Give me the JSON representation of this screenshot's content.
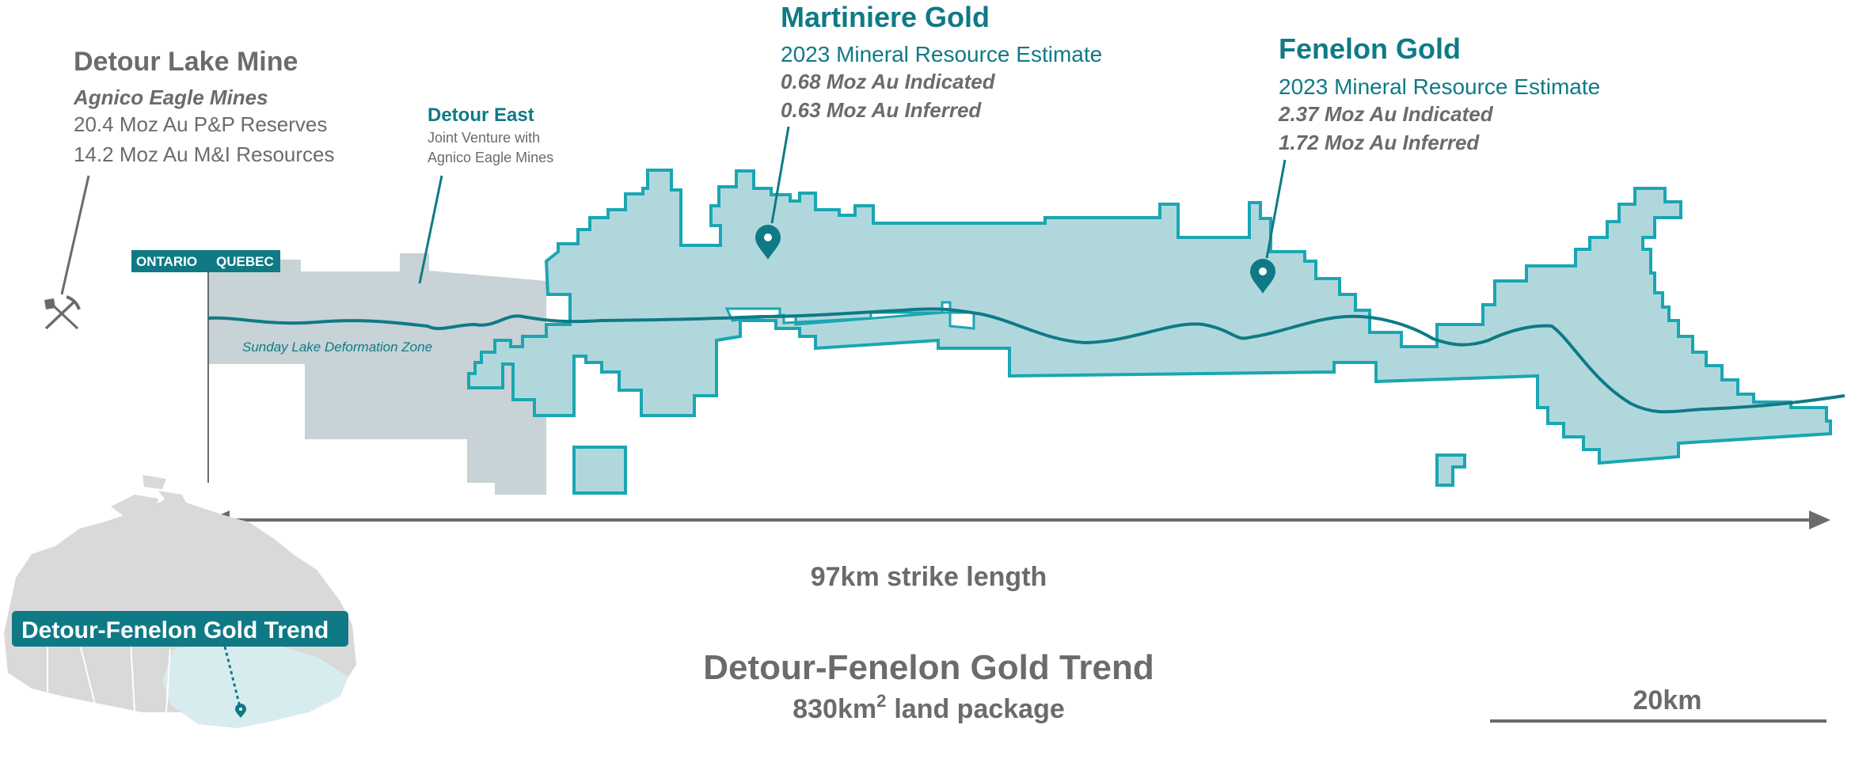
{
  "colors": {
    "teal_dark": "#0f7a86",
    "teal_fill": "#b0d8dc",
    "teal_stroke": "#1aa6b2",
    "grey_land": "#c7d3d6",
    "text_grey": "#6b6b6b",
    "canada_grey": "#d9d9d9",
    "quebec_fill": "#d7ecef"
  },
  "detour_lake": {
    "title": "Detour Lake Mine",
    "owner": "Agnico Eagle Mines",
    "line1": "20.4 Moz Au P&P Reserves",
    "line2": "14.2 Moz Au M&I Resources",
    "icon": "mine-pickaxe-shovel-icon"
  },
  "detour_east": {
    "title": "Detour East",
    "line1": "Joint Venture with",
    "line2": "Agnico Eagle Mines"
  },
  "martiniere": {
    "title": "Martiniere Gold",
    "subtitle": "2023 Mineral Resource Estimate",
    "indicated": "0.68 Moz Au Indicated",
    "inferred": "0.63 Moz Au Inferred",
    "icon": "map-pin-icon"
  },
  "fenelon": {
    "title": "Fenelon Gold",
    "subtitle": "2023 Mineral Resource Estimate",
    "indicated": "2.37 Moz Au Indicated",
    "inferred": "1.72 Moz Au Inferred",
    "icon": "map-pin-icon"
  },
  "border": {
    "ontario": "ONTARIO",
    "quebec": "QUEBEC"
  },
  "deformation_zone": "Sunday Lake Deformation Zone",
  "strike": {
    "label": "97km strike length",
    "length_km": 97
  },
  "trend": {
    "title": "Detour-Fenelon Gold Trend",
    "area_value": "830km",
    "area_sup": "2",
    "area_suffix": "land package"
  },
  "scale_bar": {
    "label": "20km",
    "length_km": 20
  },
  "inset": {
    "label": "Detour-Fenelon Gold Trend",
    "icon": "location-pin-icon"
  }
}
